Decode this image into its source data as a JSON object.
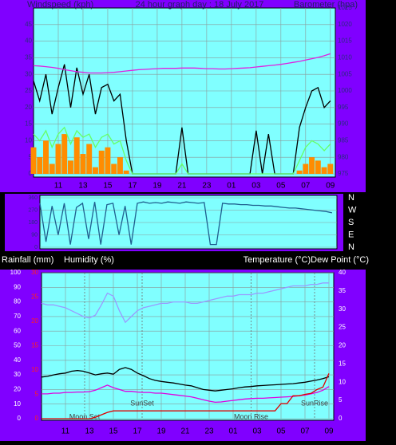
{
  "chart_data": [
    {
      "type": "line",
      "title": "24 hour graph day : 18 July 2017",
      "ylabel": "Windspeed (kph)",
      "y2label": "Barometer (hpa)",
      "x": [
        9,
        9.5,
        10,
        10.5,
        11,
        11.5,
        12,
        12.5,
        13,
        13.5,
        14,
        14.5,
        15,
        15.5,
        16,
        16.5,
        17,
        17.5,
        18,
        18.5,
        19,
        19.5,
        20,
        20.5,
        21,
        21.5,
        22,
        22.5,
        23,
        23.5,
        24,
        24.5,
        25,
        25.5,
        26,
        26.5,
        27,
        27.5,
        28,
        28.5,
        29,
        29.5,
        30,
        30.5,
        31,
        31.5,
        32,
        32.5,
        33
      ],
      "xlim": [
        9,
        33.4
      ],
      "xticks": [
        11,
        13,
        15,
        17,
        19,
        21,
        23,
        {
          "value": 25,
          "label": "01"
        },
        {
          "value": 27,
          "label": "03"
        },
        {
          "value": 29,
          "label": "05"
        },
        {
          "value": 31,
          "label": "07"
        },
        {
          "value": 33,
          "label": "09"
        }
      ],
      "ylim": [
        0,
        50
      ],
      "yticks": [
        0,
        5,
        10,
        15,
        20,
        25,
        30,
        35,
        40,
        45
      ],
      "y2lim": [
        975,
        1025
      ],
      "y2ticks": [
        975,
        980,
        985,
        990,
        995,
        1000,
        1005,
        1010,
        1015,
        1020,
        1025
      ],
      "grid": true,
      "series": [
        {
          "color": "#ff8c00",
          "style": "bar",
          "values": [
            8,
            5,
            10,
            3,
            9,
            12,
            4,
            11,
            6,
            9,
            2,
            7,
            8,
            3,
            5,
            1,
            0,
            0,
            0,
            0,
            0,
            0,
            0,
            0,
            0,
            0,
            0,
            0,
            0,
            0,
            0,
            0,
            0,
            0,
            0,
            0,
            0,
            0,
            0,
            0,
            0,
            0,
            0,
            1,
            3,
            5,
            4,
            2,
            3
          ]
        },
        {
          "color": "#000000",
          "style": "line",
          "values": [
            28,
            22,
            30,
            18,
            26,
            33,
            20,
            32,
            24,
            30,
            18,
            26,
            27,
            22,
            24,
            10,
            0,
            0,
            0,
            0,
            0,
            0,
            0,
            0,
            14,
            0,
            0,
            0,
            0,
            0,
            0,
            0,
            0,
            0,
            0,
            0,
            13,
            0,
            12,
            0,
            0,
            0,
            0,
            14,
            20,
            25,
            26,
            20,
            22
          ]
        },
        {
          "color": "#66ff66",
          "style": "line",
          "values": [
            12,
            10,
            13,
            8,
            12,
            14,
            9,
            13,
            11,
            12,
            8,
            11,
            12,
            9,
            10,
            4,
            0,
            0,
            0,
            0,
            0,
            0,
            0,
            0,
            3,
            0,
            0,
            0,
            0,
            0,
            0,
            0,
            0,
            0,
            0,
            0,
            0,
            0,
            0,
            0,
            0,
            0,
            0,
            4,
            8,
            10,
            9,
            7,
            9
          ]
        },
        {
          "color": "#e020e0",
          "style": "line",
          "axis": "y2",
          "values": [
            1007.6,
            1007.5,
            1007.3,
            1007.1,
            1006.8,
            1006.4,
            1006.1,
            1005.8,
            1005.6,
            1005.4,
            1005.4,
            1005.4,
            1005.5,
            1005.6,
            1005.8,
            1006.0,
            1006.2,
            1006.4,
            1006.5,
            1006.6,
            1006.7,
            1006.8,
            1006.8,
            1006.8,
            1006.9,
            1006.9,
            1006.9,
            1006.8,
            1006.7,
            1006.7,
            1006.6,
            1006.6,
            1006.7,
            1006.8,
            1006.9,
            1007.0,
            1007.2,
            1007.4,
            1007.6,
            1007.8,
            1008.0,
            1008.3,
            1008.6,
            1008.9,
            1009.3,
            1009.7,
            1010.1,
            1010.6,
            1011.2
          ]
        }
      ]
    },
    {
      "type": "line",
      "x": [
        9,
        9.5,
        10,
        10.5,
        11,
        11.5,
        12,
        12.5,
        13,
        13.5,
        14,
        14.5,
        15,
        15.5,
        16,
        16.5,
        17,
        17.5,
        18,
        18.5,
        19,
        19.5,
        20,
        20.5,
        21,
        21.5,
        22,
        22.5,
        23,
        23.5,
        24,
        24.5,
        25,
        25.5,
        26,
        26.5,
        27,
        27.5,
        28,
        28.5,
        29,
        29.5,
        30,
        30.5,
        31,
        31.5,
        32,
        32.5,
        33
      ],
      "xlim": [
        9,
        33.4
      ],
      "ylim": [
        0,
        360
      ],
      "yticks": [
        0,
        90,
        180,
        270,
        360
      ],
      "y2lim": [
        0,
        360
      ],
      "y2ticks": [
        {
          "value": 360,
          "label": "N"
        },
        {
          "value": 270,
          "label": "W"
        },
        {
          "value": 180,
          "label": "S"
        },
        {
          "value": 90,
          "label": "E"
        },
        {
          "value": 0,
          "label": "N"
        }
      ],
      "grid": true,
      "series": [
        {
          "color": "#1f5f8f",
          "style": "line",
          "values": [
            320,
            40,
            300,
            90,
            320,
            20,
            290,
            320,
            60,
            330,
            20,
            310,
            320,
            90,
            300,
            20,
            320,
            330,
            320,
            325,
            320,
            330,
            325,
            320,
            330,
            325,
            320,
            325,
            20,
            20,
            320,
            315,
            315,
            310,
            310,
            305,
            305,
            300,
            300,
            295,
            290,
            285,
            285,
            280,
            275,
            270,
            265,
            260,
            250
          ]
        }
      ]
    },
    {
      "type": "line",
      "ylabel": "Humidity (%)",
      "y3label": "Rainfall (mm)",
      "y2label": "Temperature (°C)Dew Point (°C)",
      "x": [
        9,
        9.5,
        10,
        10.5,
        11,
        11.5,
        12,
        12.5,
        13,
        13.5,
        14,
        14.5,
        15,
        15.5,
        16,
        16.5,
        17,
        17.5,
        18,
        18.5,
        19,
        19.5,
        20,
        20.5,
        21,
        21.5,
        22,
        22.5,
        23,
        23.5,
        24,
        24.5,
        25,
        25.5,
        26,
        26.5,
        27,
        27.5,
        28,
        28.5,
        29,
        29.5,
        30,
        30.5,
        31,
        31.5,
        32,
        32.5,
        33
      ],
      "xlim": [
        9,
        33.4
      ],
      "xticks": [
        11,
        13,
        15,
        17,
        19,
        21,
        23,
        {
          "value": 25,
          "label": "01"
        },
        {
          "value": 27,
          "label": "03"
        },
        {
          "value": 29,
          "label": "05"
        },
        {
          "value": 31,
          "label": "07"
        },
        {
          "value": 33,
          "label": "09"
        }
      ],
      "ylim": [
        0,
        100
      ],
      "yticks": [
        0,
        10,
        20,
        30,
        40,
        50,
        60,
        70,
        80,
        90,
        100
      ],
      "y2lim": [
        0,
        40
      ],
      "y2ticks": [
        0,
        5,
        10,
        15,
        20,
        25,
        30,
        35,
        40
      ],
      "y3lim": [
        0,
        30
      ],
      "y3ticks": [
        0,
        5,
        10,
        15,
        20,
        25,
        30
      ],
      "grid": true,
      "annotations": [
        {
          "text": "Moon Set",
          "x": 12.6
        },
        {
          "text": "SunSet",
          "x": 17.4
        },
        {
          "text": "Moon Rise",
          "x": 26.5
        },
        {
          "text": "SunRise",
          "x": 31.8
        }
      ],
      "series": [
        {
          "color": "#9a9aff",
          "style": "line",
          "values": [
            79,
            78,
            78,
            77,
            76,
            74,
            72,
            70,
            69,
            71,
            78,
            86,
            84,
            74,
            66,
            70,
            74,
            76,
            77,
            78,
            79,
            79,
            80,
            80,
            80,
            79,
            79,
            80,
            81,
            82,
            83,
            84,
            84,
            85,
            85,
            85,
            86,
            86,
            87,
            88,
            89,
            90,
            91,
            91,
            91,
            92,
            92,
            93,
            93
          ]
        },
        {
          "color": "#000000",
          "style": "line",
          "axis": "y2",
          "values": [
            11.4,
            11.6,
            12,
            12.3,
            12.5,
            13,
            13.2,
            13,
            12.5,
            12,
            12.3,
            12.5,
            12.2,
            13.5,
            14,
            13.5,
            12.5,
            11.8,
            11,
            10.5,
            10.2,
            10,
            9.8,
            9.5,
            9.2,
            9,
            8.5,
            8,
            7.8,
            7.6,
            7.8,
            8,
            8.2,
            8.5,
            8.7,
            8.8,
            9,
            9.1,
            9.2,
            9.3,
            9.4,
            9.5,
            9.6,
            9.8,
            10,
            10.3,
            10.6,
            11,
            11.5
          ]
        },
        {
          "color": "#e000e0",
          "style": "line",
          "axis": "y2",
          "values": [
            6.8,
            6.8,
            7,
            7,
            7.2,
            7.2,
            7.3,
            7.3,
            7.4,
            7.8,
            8.5,
            9.2,
            8.5,
            8,
            7.5,
            7.5,
            7.3,
            7.2,
            7.2,
            7,
            7,
            6.8,
            6.6,
            6.4,
            6.2,
            6,
            5.6,
            5.2,
            4.8,
            4.5,
            4.6,
            4.8,
            5,
            5.2,
            5.4,
            5.5,
            5.6,
            5.6,
            5.7,
            5.8,
            5.9,
            6,
            6.1,
            6.3,
            6.5,
            6.8,
            7.2,
            7.8,
            8.8
          ]
        },
        {
          "color": "#e00000",
          "style": "line",
          "axis": "y3",
          "values": [
            0,
            0,
            0,
            0,
            0,
            0,
            0,
            0,
            0,
            0.3,
            0.8,
            1.3,
            1.6,
            1.6,
            1.6,
            1.6,
            1.6,
            1.6,
            1.6,
            1.6,
            1.6,
            1.6,
            1.6,
            1.6,
            1.6,
            1.6,
            1.6,
            1.6,
            1.6,
            1.6,
            1.6,
            1.6,
            1.6,
            1.6,
            1.6,
            1.6,
            1.6,
            1.6,
            1.6,
            1.6,
            3.1,
            3.1,
            4.7,
            4.7,
            5,
            5.2,
            6,
            6.5,
            9.3
          ]
        }
      ]
    }
  ]
}
